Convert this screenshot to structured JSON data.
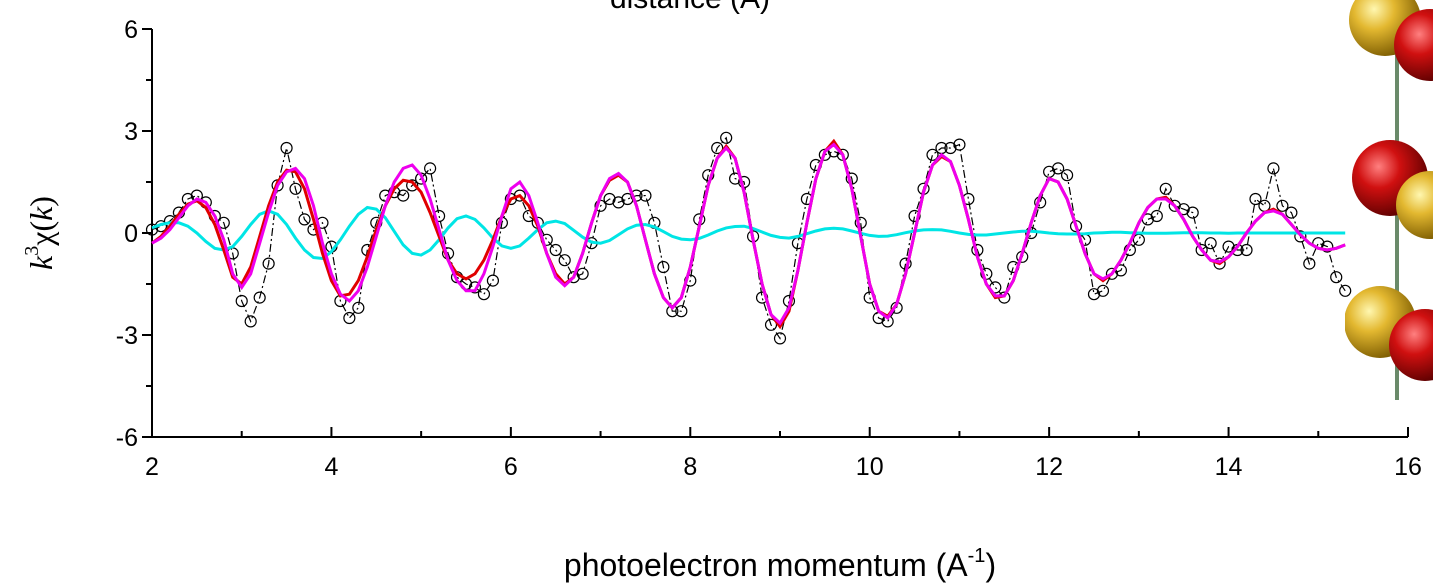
{
  "chart_data": {
    "type": "line",
    "title": "distance (Å)",
    "x_label": {
      "text": "photoelectron momentum (A",
      "superscript": "-1",
      "suffix": ")"
    },
    "y_label": {
      "k": "k",
      "power": "3",
      "chi": "χ(",
      "arg": "k",
      "close": ")"
    },
    "xlim": [
      2,
      16
    ],
    "xticks": [
      2,
      4,
      6,
      8,
      10,
      12,
      14,
      16
    ],
    "ylim": [
      -6,
      6
    ],
    "yticks": [
      -6,
      -3,
      0,
      3,
      6
    ],
    "x": [
      2.0,
      2.1,
      2.2,
      2.3,
      2.4,
      2.5,
      2.6,
      2.7,
      2.8,
      2.9,
      3.0,
      3.1,
      3.2,
      3.3,
      3.4,
      3.5,
      3.6,
      3.7,
      3.8,
      3.9,
      4.0,
      4.1,
      4.2,
      4.3,
      4.4,
      4.5,
      4.6,
      4.7,
      4.8,
      4.9,
      5.0,
      5.1,
      5.2,
      5.3,
      5.4,
      5.5,
      5.6,
      5.7,
      5.8,
      5.9,
      6.0,
      6.1,
      6.2,
      6.3,
      6.4,
      6.5,
      6.6,
      6.7,
      6.8,
      6.9,
      7.0,
      7.1,
      7.2,
      7.3,
      7.4,
      7.5,
      7.6,
      7.7,
      7.8,
      7.9,
      8.0,
      8.1,
      8.2,
      8.3,
      8.4,
      8.5,
      8.6,
      8.7,
      8.8,
      8.9,
      9.0,
      9.1,
      9.2,
      9.3,
      9.4,
      9.5,
      9.6,
      9.7,
      9.8,
      9.9,
      10.0,
      10.1,
      10.2,
      10.3,
      10.4,
      10.5,
      10.6,
      10.7,
      10.8,
      10.9,
      11.0,
      11.1,
      11.2,
      11.3,
      11.4,
      11.5,
      11.6,
      11.7,
      11.8,
      11.9,
      12.0,
      12.1,
      12.2,
      12.3,
      12.4,
      12.5,
      12.6,
      12.7,
      12.8,
      12.9,
      13.0,
      13.1,
      13.2,
      13.3,
      13.4,
      13.5,
      13.6,
      13.7,
      13.8,
      13.9,
      14.0,
      14.1,
      14.2,
      14.3,
      14.4,
      14.5,
      14.6,
      14.7,
      14.8,
      14.9,
      15.0,
      15.1,
      15.2,
      15.3
    ],
    "series": [
      {
        "color": "#000000",
        "marker": "circle",
        "dash": "dashdot",
        "values": [
          0.1,
          0.2,
          0.35,
          0.6,
          1.0,
          1.1,
          0.9,
          0.5,
          0.3,
          -0.6,
          -2.0,
          -2.6,
          -1.9,
          -0.9,
          1.4,
          2.5,
          1.3,
          0.4,
          0.1,
          0.3,
          -0.4,
          -2.0,
          -2.5,
          -2.2,
          -0.5,
          0.3,
          1.1,
          1.2,
          1.1,
          1.4,
          1.6,
          1.9,
          0.5,
          -0.6,
          -1.3,
          -1.5,
          -1.6,
          -1.8,
          -1.4,
          0.3,
          1.0,
          1.1,
          0.5,
          0.3,
          -0.2,
          -0.5,
          -0.8,
          -1.3,
          -1.2,
          -0.3,
          0.8,
          1.0,
          0.9,
          1.0,
          1.1,
          1.1,
          0.3,
          -1.0,
          -2.3,
          -2.3,
          -1.4,
          0.4,
          1.7,
          2.5,
          2.8,
          1.6,
          1.5,
          -0.1,
          -1.9,
          -2.7,
          -3.1,
          -2.0,
          -0.3,
          1.0,
          2.0,
          2.3,
          2.4,
          2.3,
          1.6,
          0.3,
          -1.9,
          -2.5,
          -2.6,
          -2.2,
          -0.9,
          0.5,
          1.3,
          2.3,
          2.5,
          2.5,
          2.6,
          1.0,
          -0.5,
          -1.2,
          -1.6,
          -1.9,
          -1.0,
          -0.7,
          0.0,
          0.9,
          1.8,
          1.9,
          1.7,
          0.2,
          -0.2,
          -1.8,
          -1.7,
          -1.2,
          -1.1,
          -0.5,
          -0.2,
          0.4,
          0.5,
          1.3,
          0.8,
          0.7,
          0.6,
          -0.5,
          -0.3,
          -0.9,
          -0.4,
          -0.5,
          -0.5,
          1.0,
          0.8,
          1.9,
          0.8,
          0.6,
          -0.1,
          -0.9,
          -0.3,
          -0.4,
          -1.3,
          -1.7
        ]
      },
      {
        "color": "#00e5e5",
        "values": [
          0.15,
          0.25,
          0.3,
          0.3,
          0.2,
          0.0,
          -0.25,
          -0.45,
          -0.5,
          -0.4,
          -0.1,
          0.25,
          0.55,
          0.65,
          0.55,
          0.25,
          -0.15,
          -0.5,
          -0.72,
          -0.75,
          -0.55,
          -0.2,
          0.2,
          0.55,
          0.75,
          0.7,
          0.45,
          0.05,
          -0.35,
          -0.6,
          -0.65,
          -0.5,
          -0.2,
          0.15,
          0.42,
          0.5,
          0.4,
          0.15,
          -0.15,
          -0.38,
          -0.45,
          -0.38,
          -0.15,
          0.1,
          0.3,
          0.35,
          0.28,
          0.08,
          -0.12,
          -0.27,
          -0.3,
          -0.22,
          -0.05,
          0.12,
          0.23,
          0.25,
          0.18,
          0.04,
          -0.1,
          -0.18,
          -0.2,
          -0.16,
          -0.06,
          0.06,
          0.15,
          0.19,
          0.2,
          0.13,
          0.03,
          -0.07,
          -0.13,
          -0.15,
          -0.1,
          -0.02,
          0.06,
          0.12,
          0.14,
          0.12,
          0.06,
          -0.01,
          -0.07,
          -0.1,
          -0.09,
          -0.05,
          0.01,
          0.06,
          0.09,
          0.1,
          0.09,
          0.05,
          0.0,
          -0.04,
          -0.06,
          -0.06,
          -0.03,
          0.0,
          0.03,
          0.05,
          0.05,
          0.03,
          0.0,
          -0.02,
          -0.03,
          -0.03,
          -0.02,
          0.0,
          0.01,
          0.02,
          0.02,
          0.01,
          0.0,
          -0.01,
          -0.01,
          -0.01,
          0.0,
          0.01,
          0.01,
          0.01,
          0.0,
          0.0,
          -0.01,
          0.0,
          0.0,
          0.0,
          0.0,
          0.0,
          0.0,
          0.0,
          0.0,
          0.0,
          0.0,
          0.0,
          0.0,
          0.0
        ]
      },
      {
        "color": "#e00000",
        "values": [
          -0.3,
          -0.1,
          0.2,
          0.55,
          0.85,
          0.95,
          0.75,
          0.25,
          -0.5,
          -1.3,
          -1.5,
          -1.0,
          -0.1,
          0.8,
          1.5,
          1.85,
          1.8,
          1.3,
          0.4,
          -0.6,
          -1.4,
          -1.85,
          -1.8,
          -1.4,
          -0.7,
          0.1,
          0.8,
          1.3,
          1.55,
          1.5,
          1.2,
          0.6,
          -0.1,
          -0.8,
          -1.2,
          -1.35,
          -1.2,
          -0.8,
          -0.2,
          0.5,
          1.0,
          1.1,
          0.8,
          0.2,
          -0.6,
          -1.2,
          -1.5,
          -1.3,
          -0.6,
          0.3,
          1.1,
          1.55,
          1.7,
          1.5,
          0.8,
          -0.2,
          -1.2,
          -1.9,
          -2.2,
          -1.9,
          -1.0,
          0.2,
          1.4,
          2.2,
          2.55,
          2.2,
          1.2,
          -0.2,
          -1.5,
          -2.4,
          -2.75,
          -2.3,
          -1.1,
          0.3,
          1.6,
          2.4,
          2.7,
          2.3,
          1.3,
          -0.1,
          -1.5,
          -2.3,
          -2.45,
          -2.1,
          -1.2,
          0.0,
          1.2,
          2.0,
          2.25,
          2.1,
          1.4,
          0.4,
          -0.7,
          -1.5,
          -1.9,
          -1.85,
          -1.4,
          -0.6,
          0.3,
          1.1,
          1.6,
          1.5,
          1.0,
          0.2,
          -0.6,
          -1.2,
          -1.4,
          -1.2,
          -0.8,
          -0.3,
          0.3,
          0.75,
          1.0,
          1.05,
          0.8,
          0.4,
          -0.1,
          -0.5,
          -0.8,
          -0.9,
          -0.7,
          -0.4,
          0.0,
          0.35,
          0.6,
          0.7,
          0.55,
          0.25,
          -0.05,
          -0.3,
          -0.45,
          -0.5,
          -0.45,
          -0.35
        ]
      },
      {
        "color": "#ee00ee",
        "values": [
          -0.3,
          -0.15,
          0.1,
          0.45,
          0.8,
          1.0,
          0.9,
          0.5,
          -0.2,
          -1.2,
          -1.6,
          -1.2,
          -0.3,
          0.6,
          1.4,
          1.8,
          1.9,
          1.6,
          0.8,
          -0.3,
          -1.2,
          -1.8,
          -2.0,
          -1.7,
          -1.0,
          -0.1,
          0.8,
          1.5,
          1.9,
          2.0,
          1.7,
          1.0,
          0.1,
          -0.8,
          -1.4,
          -1.7,
          -1.7,
          -1.2,
          -0.4,
          0.5,
          1.3,
          1.5,
          1.1,
          0.3,
          -0.6,
          -1.3,
          -1.55,
          -1.3,
          -0.6,
          0.3,
          1.1,
          1.6,
          1.75,
          1.5,
          0.8,
          -0.2,
          -1.2,
          -1.9,
          -2.2,
          -1.9,
          -1.0,
          0.2,
          1.4,
          2.2,
          2.5,
          2.2,
          1.2,
          -0.2,
          -1.5,
          -2.4,
          -2.65,
          -2.2,
          -1.1,
          0.3,
          1.6,
          2.4,
          2.6,
          2.3,
          1.3,
          -0.1,
          -1.5,
          -2.3,
          -2.5,
          -2.1,
          -1.2,
          0.0,
          1.2,
          2.0,
          2.3,
          2.1,
          1.4,
          0.4,
          -0.7,
          -1.5,
          -1.85,
          -1.85,
          -1.4,
          -0.6,
          0.3,
          1.1,
          1.6,
          1.5,
          1.0,
          0.2,
          -0.6,
          -1.2,
          -1.35,
          -1.2,
          -0.8,
          -0.3,
          0.3,
          0.75,
          1.0,
          1.0,
          0.8,
          0.4,
          -0.1,
          -0.5,
          -0.8,
          -0.85,
          -0.7,
          -0.4,
          0.0,
          0.35,
          0.6,
          0.65,
          0.55,
          0.25,
          -0.05,
          -0.3,
          -0.45,
          -0.5,
          -0.45,
          -0.35
        ]
      }
    ]
  }
}
